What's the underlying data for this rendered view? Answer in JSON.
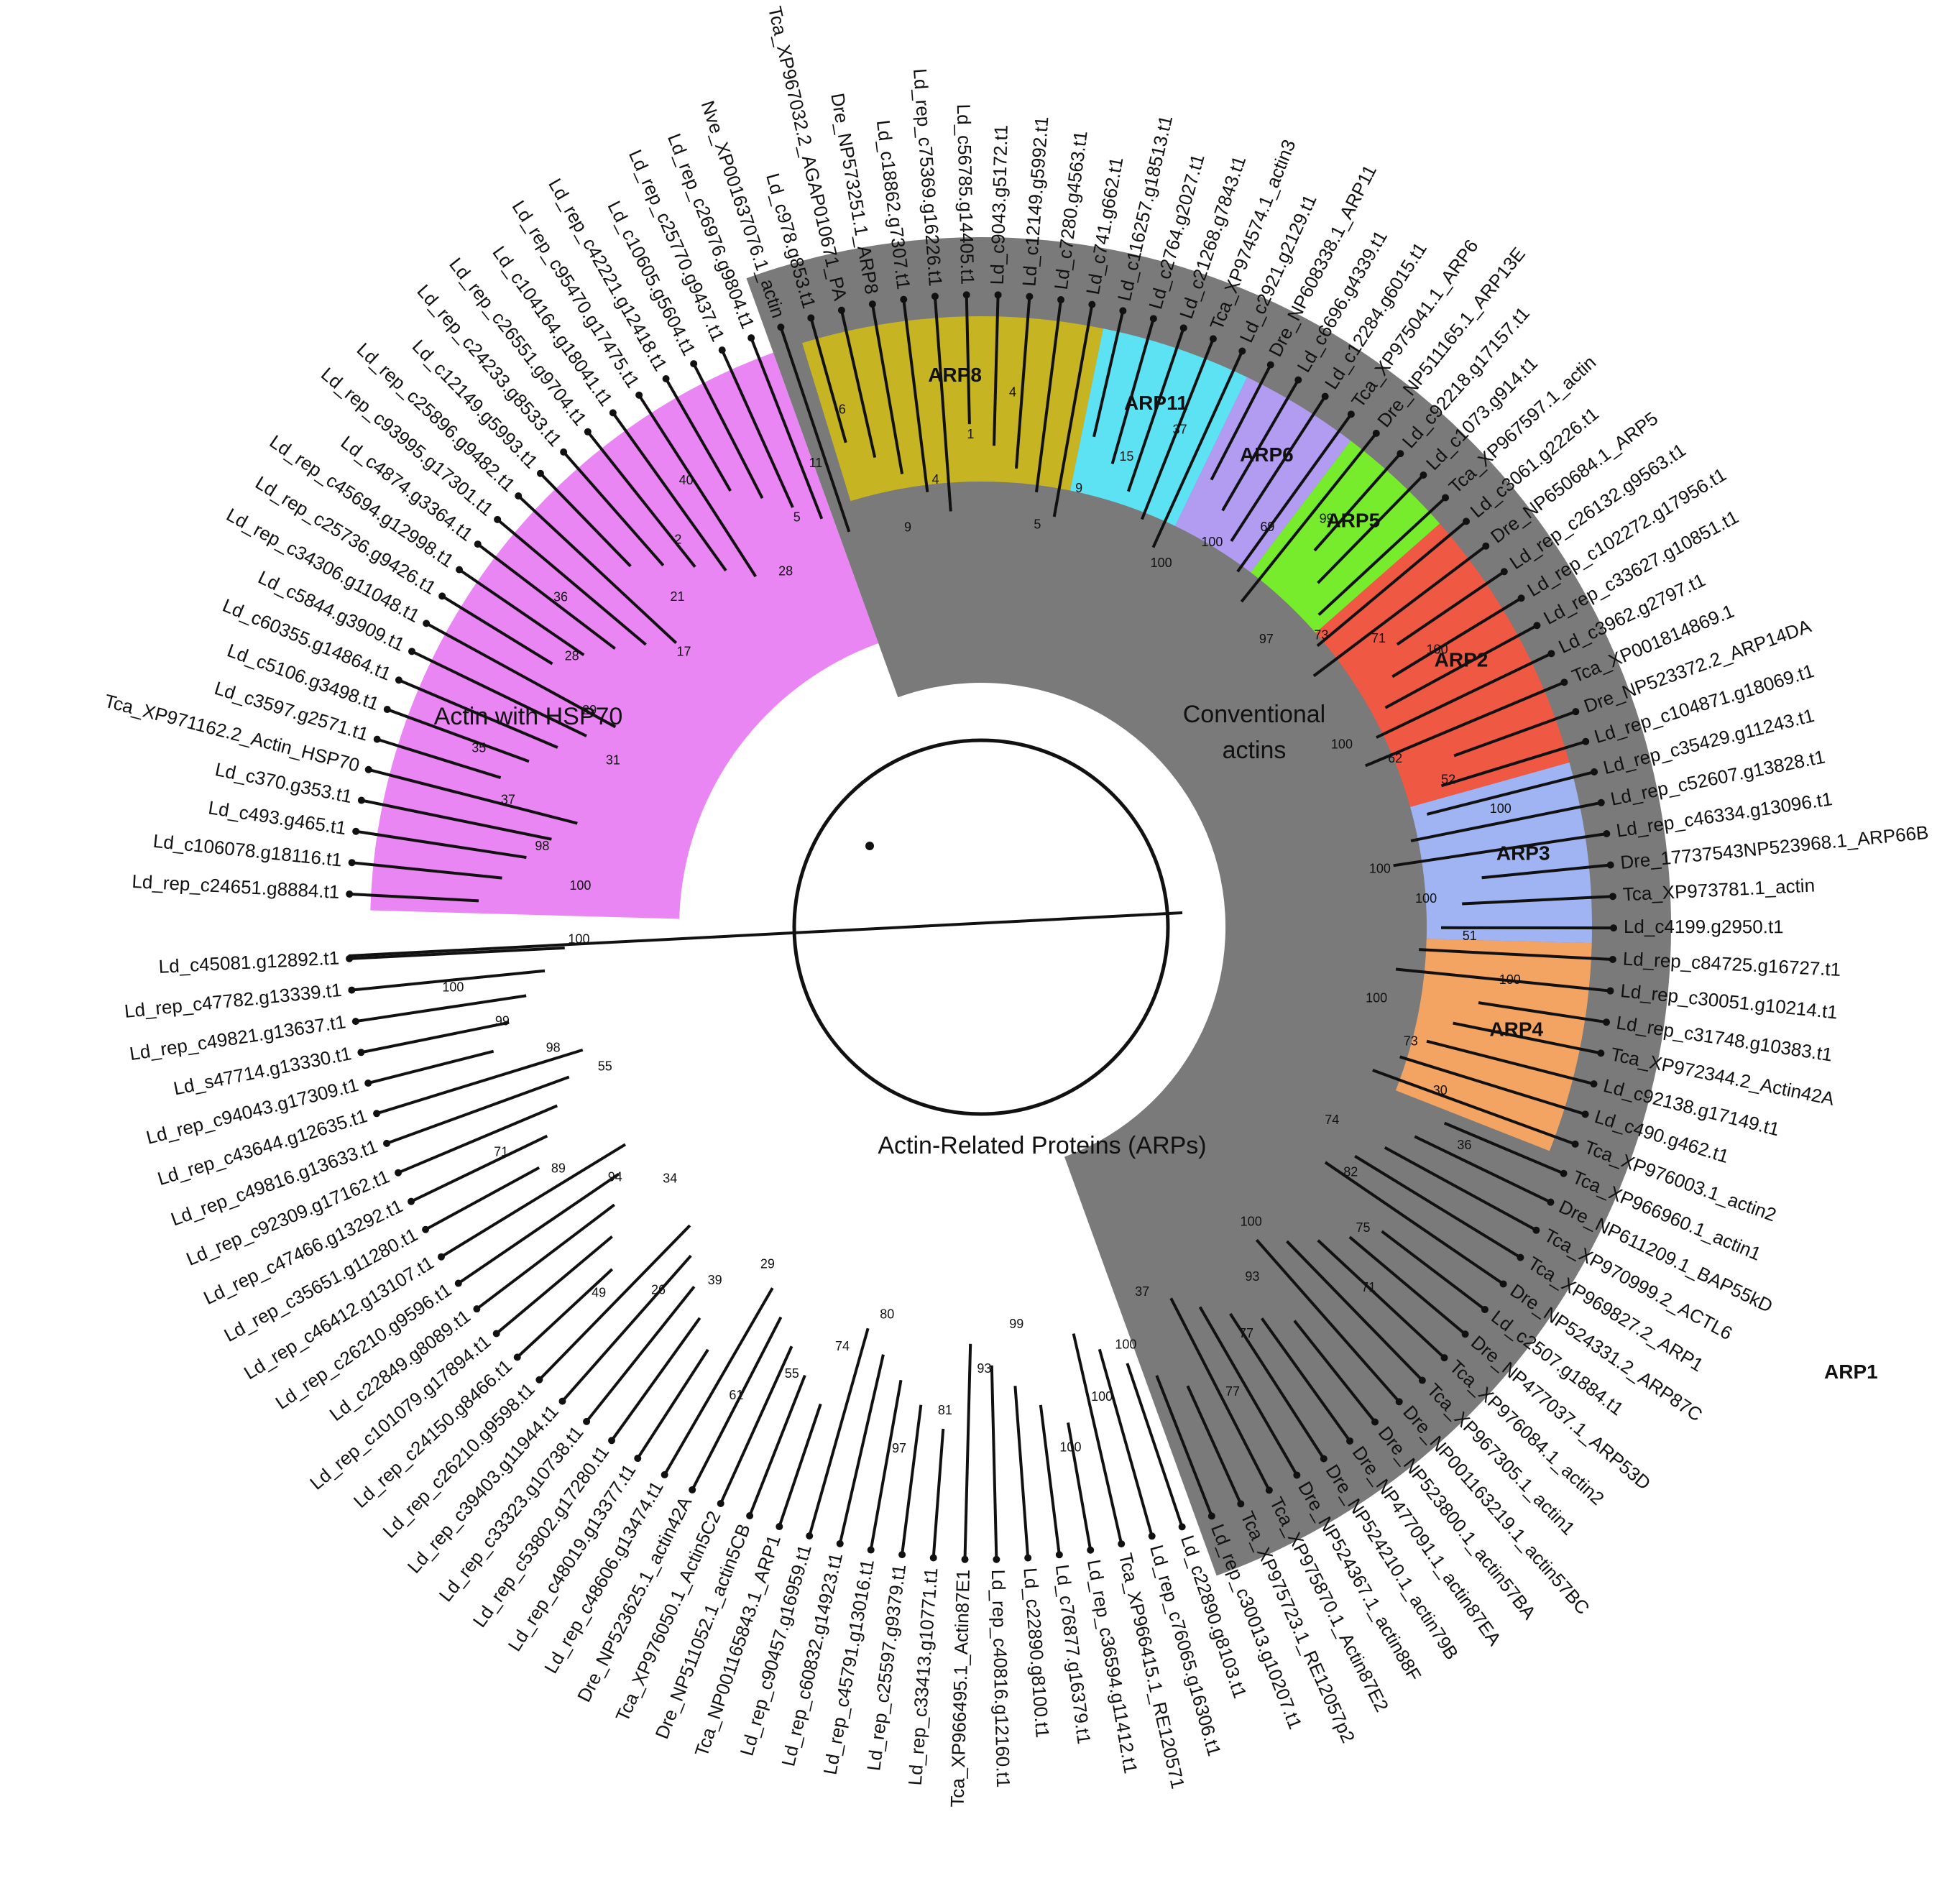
{
  "regions": {
    "conventional": "Conventional\nactins",
    "hsp70": "Actin with HSP70",
    "arps": "Actin-Related Proteins (ARPs)",
    "arp1_outside": "ARP1"
  },
  "clades": [
    {
      "id": "hsp70",
      "label": "",
      "color": "#ea86f3",
      "from": 0,
      "to": 23
    },
    {
      "id": "arps",
      "label": "",
      "color": "#7a7a7a",
      "from": 24,
      "to": 86
    },
    {
      "id": "arp8",
      "label": "ARP8",
      "color": "#c7b423",
      "from": 25,
      "to": 34
    },
    {
      "id": "arp11",
      "label": "ARP11",
      "color": "#5de2f4",
      "from": 35,
      "to": 39
    },
    {
      "id": "arp6",
      "label": "ARP6",
      "color": "#b19cf2",
      "from": 40,
      "to": 43
    },
    {
      "id": "arp5",
      "label": "ARP5",
      "color": "#77ec2c",
      "from": 44,
      "to": 47
    },
    {
      "id": "arp2",
      "label": "ARP2",
      "color": "#ef5843",
      "from": 48,
      "to": 56
    },
    {
      "id": "arp3",
      "label": "ARP3",
      "color": "#a0b3f2",
      "from": 57,
      "to": 62
    },
    {
      "id": "arp4",
      "label": "ARP4",
      "color": "#f3a463",
      "from": 63,
      "to": 69
    }
  ],
  "leaves": [
    "Ld_rep_c24651.g8884.t1",
    "Ld_c106078.g18116.t1",
    "Ld_c493.g465.t1",
    "Ld_c370.g353.t1",
    "Tca_XP971162.2_Actin_HSP70",
    "Ld_c3597.g2571.t1",
    "Ld_c5106.g3498.t1",
    "Ld_c60355.g14864.t1",
    "Ld_c5844.g3909.t1",
    "Ld_rep_c34306.g11048.t1",
    "Ld_rep_c25736.g9426.t1",
    "Ld_rep_c45694.g12998.t1",
    "Ld_c4874.g3364.t1",
    "Ld_rep_c93995.g17301.t1",
    "Ld_rep_c25896.g9482.t1",
    "Ld_c12149.g5993.t1",
    "Ld_rep_c24233.g8533.t1",
    "Ld_rep_c26551.g9704.t1",
    "Ld_c104164.g18041.t1",
    "Ld_rep_c95470.g17475.t1",
    "Ld_rep_c42221.g12418.t1",
    "Ld_c10605.g5604.t1",
    "Ld_rep_c25770.g9437.t1",
    "Ld_rep_c26976.g9804.t1",
    "Nve_XP001637076.1_actin",
    "Ld_c978.g853.t1",
    "Tca_XP967032.2_AGAP010671_PA",
    "Dre_NP573251.1_ARP8",
    "Ld_c18862.g7307.t1",
    "Ld_rep_c75369.g16226.t1",
    "Ld_c56785.g14405.t1",
    "Ld_c9043.g5172.t1",
    "Ld_c12149.g5992.t1",
    "Ld_c7280.g4563.t1",
    "Ld_c741.g662.t1",
    "Ld_c116257.g18513.t1",
    "Ld_c2764.g2027.t1",
    "Ld_c21268.g7843.t1",
    "Tca_XP974574.1_actin3",
    "Ld_c2921.g2129.t1",
    "Dre_NP608338.1_ARP11",
    "Ld_c6696.g4339.t1",
    "Ld_c12284.g6015.t1",
    "Tca_XP975041.1_ARP6",
    "Dre_NP511165.1_ARP13E",
    "Ld_c92218.g17157.t1",
    "Ld_c1073.g914.t1",
    "Tca_XP967597.1_actin",
    "Ld_c3061.g2226.t1",
    "Dre_NP650684.1_ARP5",
    "Ld_rep_c26132.g9563.t1",
    "Ld_rep_c102272.g17956.t1",
    "Ld_rep_c33627.g10851.t1",
    "Ld_c3962.g2797.t1",
    "Tca_XP001814869.1",
    "Dre_NP523372.2_ARP14DA",
    "Ld_rep_c104871.g18069.t1",
    "Ld_rep_c35429.g11243.t1",
    "Ld_rep_c52607.g13828.t1",
    "Ld_rep_c46334.g13096.t1",
    "Dre_17737543NP523968.1_ARP66B",
    "Tca_XP973781.1_actin",
    "Ld_c4199.g2950.t1",
    "Ld_rep_c84725.g16727.t1",
    "Ld_rep_c30051.g10214.t1",
    "Ld_rep_c31748.g10383.t1",
    "Tca_XP972344.2_Actin42A",
    "Ld_c92138.g17149.t1",
    "Ld_c490.g462.t1",
    "Tca_XP976003.1_actin2",
    "Tca_XP966960.1_actin1",
    "Dre_NP611209.1_BAP55kD",
    "Tca_XP970999.2_ACTL6",
    "Tca_XP969827.2_ARP1",
    "Dre_NP524331.2_ARP87C",
    "Ld_c2507.g1884.t1",
    "Dre_NP477037.1_ARP53D",
    "Tca_XP976084.1_actin2",
    "Tca_XP967305.1_actin1",
    "Dre_NP001163219.1_actin57BC",
    "Dre_NP523800.1_actin57BA",
    "Dre_NP477091.1_actin87EA",
    "Dre_NP524210.1_actin79B",
    "Dre_NP524367.1_actin88F",
    "Tca_XP975870.1_Actin87E2",
    "Tca_XP975723.1_RE12057p2",
    "Ld_rep_c30013.g10207.t1",
    "Ld_c22890.g8103.t1",
    "Ld_rep_c76065.g16306.t1",
    "Tca_XP966415.1_RE120571",
    "Ld_rep_c36594.g11412.t1",
    "Ld_c76877.g16379.t1",
    "Ld_c22890.g8100.t1",
    "Ld_rep_c40816.g12160.t1",
    "Tca_XP966495.1_Actin87E1",
    "Ld_rep_c33413.g10771.t1",
    "Ld_rep_c25597.g9379.t1",
    "Ld_rep_c45791.g13016.t1",
    "Ld_rep_c60832.g14923.t1",
    "Ld_rep_c90457.g16959.t1",
    "Tca_NP001165843.1_ARP1",
    "Dre_NP511052.1_actin5CB",
    "Tca_XP976050.1_Actin5C2",
    "Dre_NP523625.1_actin42A",
    "Ld_rep_c48606.g13474.t1",
    "Ld_rep_c48019.g13377.t1",
    "Ld_rep_c53802.g17280.t1",
    "Ld_rep_c33323.g10738.t1",
    "Ld_rep_c39403.g11944.t1",
    "Ld_rep_c26210.g9598.t1",
    "Ld_rep_c24150.g8466.t1",
    "Ld_rep_c101079.g17894.t1",
    "Ld_c22849.g8089.t1",
    "Ld_rep_c26210.g9596.t1",
    "Ld_rep_c46412.g13107.t1",
    "Ld_rep_c35651.g11280.t1",
    "Ld_rep_c47466.g13292.t1",
    "Ld_rep_c92309.g17162.t1",
    "Ld_rep_c49816.g13633.t1",
    "Ld_rep_c43644.g12635.t1",
    "Ld_rep_c94043.g17309.t1",
    "Ld_s47714.g13330.t1",
    "Ld_rep_c49821.g13637.t1",
    "Ld_rep_c47782.g13339.t1",
    "Ld_c45081.g12892.t1"
  ],
  "support_values": [
    "100",
    "98",
    "37",
    "35",
    "31",
    "29",
    "28",
    "36",
    "17",
    "21",
    "2",
    "40",
    "28",
    "5",
    "11",
    "6",
    "9",
    "4",
    "1",
    "4",
    "5",
    "9",
    "15",
    "37",
    "100",
    "100",
    "69",
    "99",
    "97",
    "73",
    "71",
    "100",
    "100",
    "62",
    "52",
    "100",
    "100",
    "100",
    "51",
    "100",
    "100",
    "73",
    "30",
    "36",
    "74",
    "82",
    "75",
    "71",
    "100",
    "93",
    "77",
    "77",
    "37",
    "100",
    "100",
    "100",
    "99",
    "93",
    "81",
    "97",
    "80",
    "74",
    "55",
    "61",
    "29",
    "39",
    "26",
    "49",
    "34",
    "94",
    "89",
    "71",
    "55",
    "98",
    "99",
    "100",
    "100"
  ]
}
